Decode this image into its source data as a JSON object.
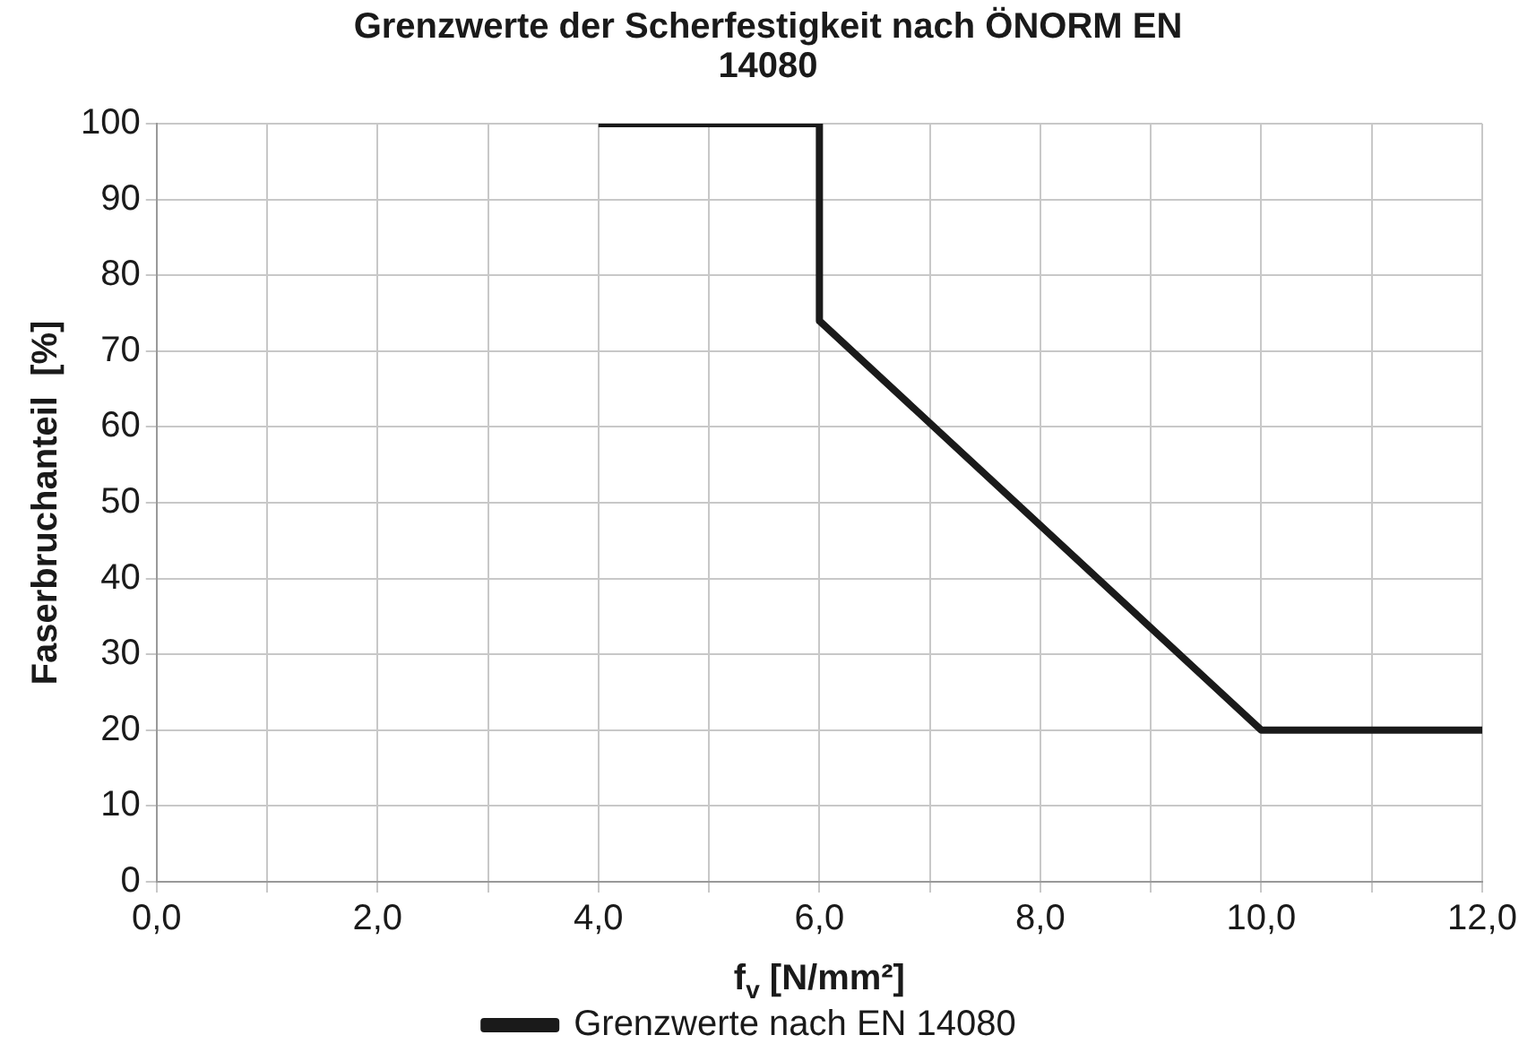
{
  "chart_data": {
    "type": "line",
    "title": "Grenzwerte der Scherfestigkeit nach ÖNORM EN 14080",
    "xlabel": "f$_{v}$ [N/mm²]",
    "ylabel": "Faserbruchanteil  [%]",
    "series": [
      {
        "name": "Grenzwerte nach EN 14080",
        "color": "#1a1a1a",
        "x": [
          4,
          6,
          6,
          10,
          12
        ],
        "values": [
          100,
          100,
          74,
          20,
          20
        ]
      }
    ],
    "xlim": [
      0,
      12
    ],
    "xticks": [
      {
        "value": 0,
        "label": "0,0"
      },
      {
        "value": 1,
        "label": null
      },
      {
        "value": 2,
        "label": "2,0"
      },
      {
        "value": 3,
        "label": null
      },
      {
        "value": 4,
        "label": "4,0"
      },
      {
        "value": 5,
        "label": null
      },
      {
        "value": 6,
        "label": "6,0"
      },
      {
        "value": 7,
        "label": null
      },
      {
        "value": 8,
        "label": "8,0"
      },
      {
        "value": 9,
        "label": null
      },
      {
        "value": 10,
        "label": "10,0"
      },
      {
        "value": 11,
        "label": null
      },
      {
        "value": 12,
        "label": "12,0"
      }
    ],
    "ylim": [
      0,
      100
    ],
    "yticks": [
      0,
      10,
      20,
      30,
      40,
      50,
      60,
      70,
      80,
      90,
      100
    ],
    "grid": true,
    "legend": "bottom",
    "marker": "none",
    "line_style": "solid"
  }
}
